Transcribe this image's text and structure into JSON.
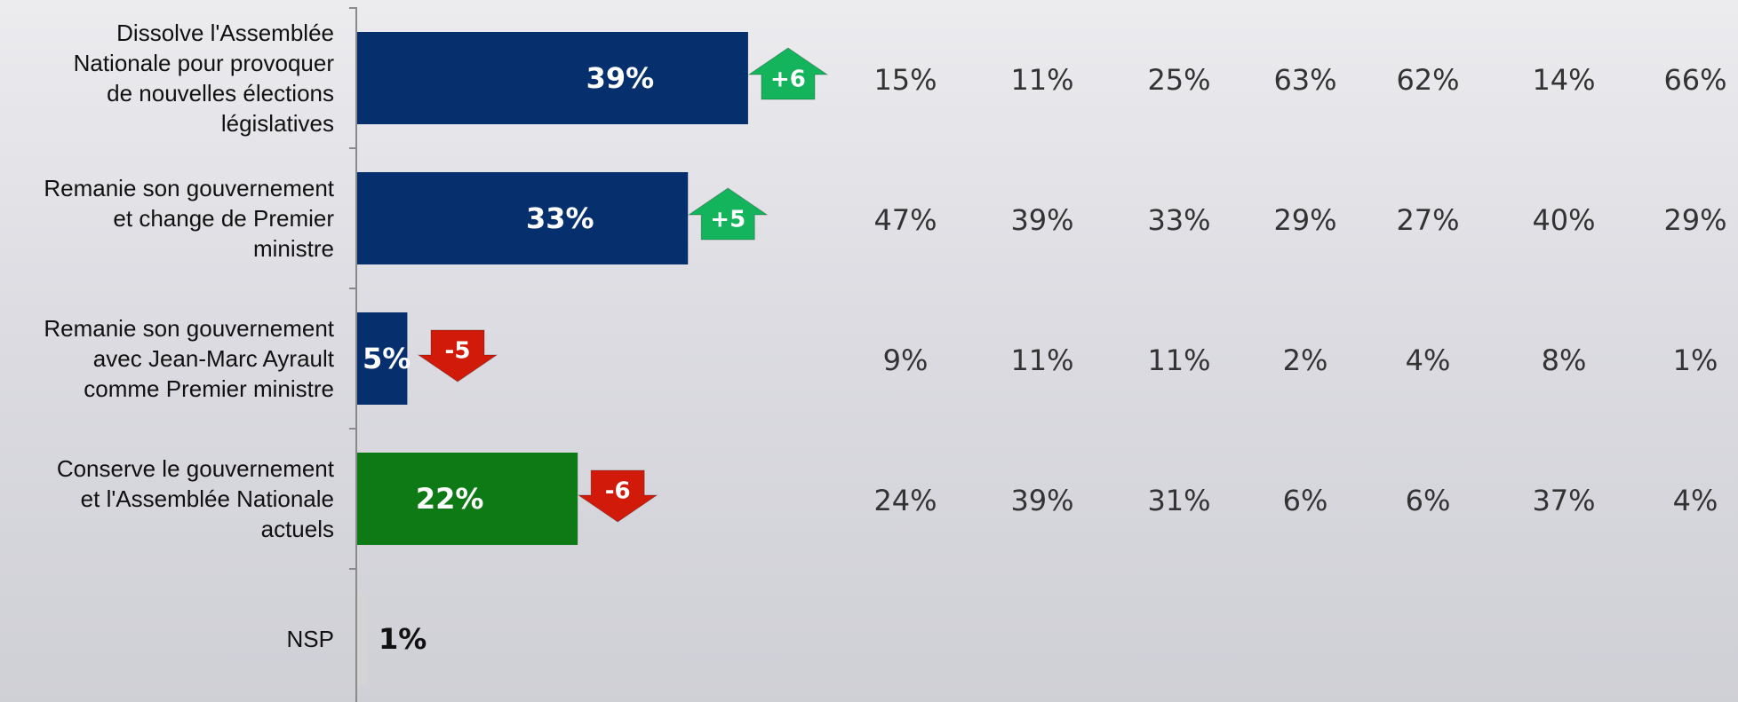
{
  "chart_data": {
    "type": "hbar",
    "categories": [
      "Dissolve l'Assemblée\nNationale pour provoquer\nde nouvelles élections\nlégislatives",
      "Remanie son gouvernement\net change de Premier\nministre",
      "Remanie son gouvernement\navec Jean-Marc Ayrault\ncomme Premier ministre",
      "Conserve le gouvernement\net l'Assemblée Nationale\nactuels",
      "NSP"
    ],
    "values": [
      39,
      33,
      5,
      22,
      1
    ],
    "value_labels": [
      "39%",
      "33%",
      "5%",
      "22%",
      "1%"
    ],
    "colors": [
      "#062f6e",
      "#062f6e",
      "#062f6e",
      "#0e7a15",
      "#d4d4d4"
    ],
    "label_colors": [
      "#ffffff",
      "#ffffff",
      "#ffffff",
      "#ffffff",
      "#111111"
    ],
    "changes": [
      6,
      5,
      -5,
      -6,
      null
    ],
    "change_labels": [
      "+6",
      "+5",
      "-5",
      "-6",
      null
    ],
    "change_colors": {
      "up": "#13b45c",
      "down": "#d21a0a"
    },
    "xlim": [
      0,
      100
    ],
    "breakdown": [
      [
        "15%",
        "11%",
        "25%",
        "63%",
        "62%",
        "14%",
        "66%"
      ],
      [
        "47%",
        "39%",
        "33%",
        "29%",
        "27%",
        "40%",
        "29%"
      ],
      [
        "9%",
        "11%",
        "11%",
        "2%",
        "4%",
        "8%",
        "1%"
      ],
      [
        "24%",
        "39%",
        "31%",
        "6%",
        "6%",
        "37%",
        "4%"
      ]
    ]
  }
}
